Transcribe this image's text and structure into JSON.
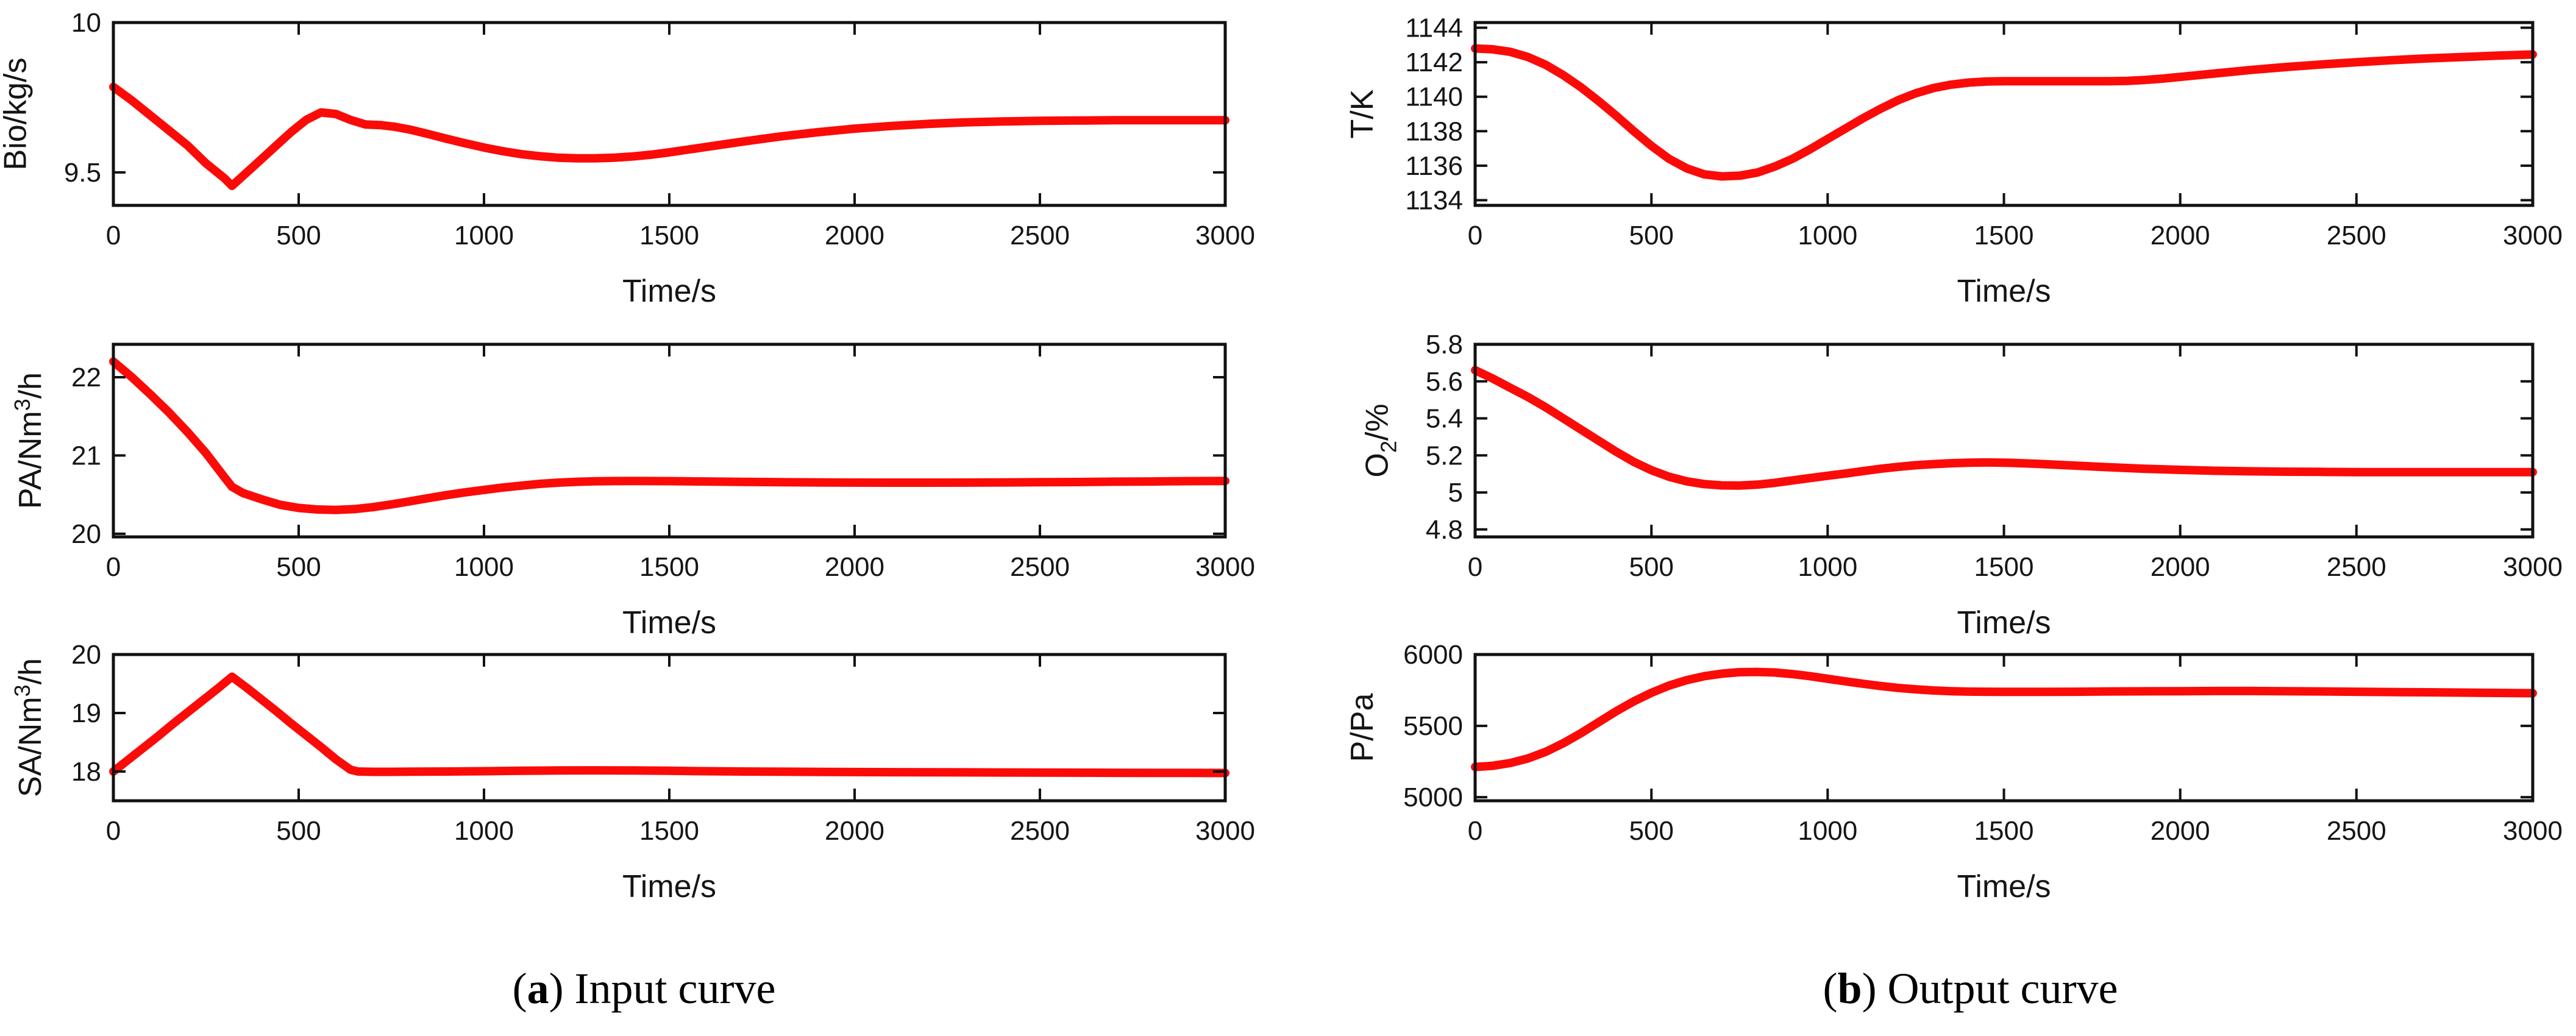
{
  "captions": {
    "a": {
      "prefix": "(",
      "letter": "a",
      "suffix": ") Input curve"
    },
    "b": {
      "prefix": "(",
      "letter": "b",
      "suffix": ") Output curve"
    }
  },
  "style": {
    "line_color": "#fb0b08",
    "axis_color": "#111111",
    "grid": false,
    "legend": false
  },
  "chart_data": [
    {
      "id": "bio",
      "panel": "a",
      "row": 1,
      "type": "line",
      "title": "",
      "ylabel": "Bio/kg/s",
      "ylabel_parts": [
        {
          "text": "Bio/kg/s"
        }
      ],
      "xlabel": "Time/s",
      "xlim": [
        0,
        3000
      ],
      "ylim": [
        9.39,
        10
      ],
      "xticks": [
        0,
        500,
        1000,
        1500,
        2000,
        2500,
        3000
      ],
      "xtick_labels": [
        "0",
        "500",
        "1000",
        "1500",
        "2000",
        "2500",
        "3000"
      ],
      "yticks": [
        9.5,
        10
      ],
      "ytick_labels": [
        "9.5",
        "10"
      ],
      "x": [
        0,
        50,
        100,
        150,
        200,
        250,
        300,
        320,
        360,
        400,
        440,
        480,
        520,
        560,
        600,
        640,
        680,
        720,
        760,
        800,
        850,
        900,
        950,
        1000,
        1050,
        1100,
        1150,
        1200,
        1250,
        1300,
        1350,
        1400,
        1450,
        1500,
        1550,
        1600,
        1700,
        1800,
        1900,
        2000,
        2100,
        2200,
        2300,
        2400,
        2500,
        2600,
        2700,
        2800,
        2900,
        3000
      ],
      "y": [
        9.785,
        9.74,
        9.69,
        9.64,
        9.59,
        9.53,
        9.48,
        9.455,
        9.5,
        9.545,
        9.59,
        9.635,
        9.675,
        9.7,
        9.695,
        9.675,
        9.66,
        9.658,
        9.652,
        9.643,
        9.628,
        9.612,
        9.597,
        9.583,
        9.571,
        9.561,
        9.554,
        9.549,
        9.547,
        9.547,
        9.549,
        9.553,
        9.559,
        9.567,
        9.576,
        9.585,
        9.603,
        9.62,
        9.634,
        9.646,
        9.655,
        9.662,
        9.667,
        9.67,
        9.672,
        9.673,
        9.674,
        9.674,
        9.674,
        9.674
      ]
    },
    {
      "id": "pa",
      "panel": "a",
      "row": 2,
      "type": "line",
      "title": "",
      "ylabel": "PA/Nm3/h",
      "ylabel_parts": [
        {
          "text": "PA/Nm"
        },
        {
          "text": "3",
          "style": "sup"
        },
        {
          "text": "/h"
        }
      ],
      "xlabel": "Time/s",
      "xlim": [
        0,
        3000
      ],
      "ylim": [
        19.96,
        22.42
      ],
      "xticks": [
        0,
        500,
        1000,
        1500,
        2000,
        2500,
        3000
      ],
      "xtick_labels": [
        "0",
        "500",
        "1000",
        "1500",
        "2000",
        "2500",
        "3000"
      ],
      "yticks": [
        20,
        21,
        22
      ],
      "ytick_labels": [
        "20",
        "21",
        "22"
      ],
      "x": [
        0,
        50,
        100,
        150,
        200,
        250,
        300,
        320,
        350,
        400,
        450,
        500,
        550,
        600,
        650,
        700,
        750,
        800,
        850,
        900,
        950,
        1000,
        1050,
        1100,
        1150,
        1200,
        1250,
        1300,
        1350,
        1400,
        1500,
        1600,
        1700,
        1800,
        1900,
        2000,
        2100,
        2200,
        2300,
        2400,
        2500,
        2600,
        2700,
        2800,
        2900,
        3000
      ],
      "y": [
        22.2,
        22.0,
        21.78,
        21.55,
        21.3,
        21.03,
        20.72,
        20.6,
        20.52,
        20.44,
        20.37,
        20.33,
        20.31,
        20.305,
        20.315,
        20.34,
        20.375,
        20.415,
        20.455,
        20.495,
        20.53,
        20.56,
        20.59,
        20.615,
        20.637,
        20.653,
        20.664,
        20.67,
        20.673,
        20.674,
        20.672,
        20.668,
        20.663,
        20.659,
        20.656,
        20.654,
        20.653,
        20.653,
        20.654,
        20.656,
        20.658,
        20.661,
        20.665,
        20.668,
        20.672,
        20.675
      ]
    },
    {
      "id": "sa",
      "panel": "a",
      "row": 3,
      "type": "line",
      "title": "",
      "ylabel": "SA/Nm3/h",
      "ylabel_parts": [
        {
          "text": "SA/Nm"
        },
        {
          "text": "3",
          "style": "sup"
        },
        {
          "text": "/h"
        }
      ],
      "xlabel": "Time/s",
      "xlim": [
        0,
        3000
      ],
      "ylim": [
        17.5,
        20
      ],
      "xticks": [
        0,
        500,
        1000,
        1500,
        2000,
        2500,
        3000
      ],
      "xtick_labels": [
        "0",
        "500",
        "1000",
        "1500",
        "2000",
        "2500",
        "3000"
      ],
      "yticks": [
        18,
        19,
        20
      ],
      "ytick_labels": [
        "18",
        "19",
        "20"
      ],
      "x": [
        0,
        40,
        80,
        120,
        160,
        200,
        240,
        280,
        320,
        360,
        400,
        440,
        480,
        520,
        560,
        600,
        640,
        660,
        700,
        750,
        800,
        900,
        1000,
        1100,
        1200,
        1300,
        1400,
        1500,
        1600,
        1700,
        1800,
        1900,
        2000,
        2100,
        2200,
        2300,
        2400,
        2500,
        2600,
        2700,
        2800,
        2900,
        3000
      ],
      "y": [
        18.0,
        18.2,
        18.4,
        18.6,
        18.81,
        19.01,
        19.21,
        19.41,
        19.62,
        19.43,
        19.23,
        19.03,
        18.82,
        18.62,
        18.42,
        18.21,
        18.03,
        18.0,
        17.995,
        17.995,
        17.998,
        18.0,
        18.005,
        18.012,
        18.018,
        18.02,
        18.018,
        18.012,
        18.005,
        18.0,
        17.997,
        17.994,
        17.991,
        17.989,
        17.987,
        17.985,
        17.983,
        17.981,
        17.98,
        17.978,
        17.977,
        17.976,
        17.975
      ]
    },
    {
      "id": "temperature",
      "panel": "b",
      "row": 1,
      "type": "line",
      "title": "",
      "ylabel": "T/K",
      "ylabel_parts": [
        {
          "text": "T/K"
        }
      ],
      "xlabel": "Time/s",
      "xlim": [
        0,
        3000
      ],
      "ylim": [
        1133.7,
        1144.3
      ],
      "xticks": [
        0,
        500,
        1000,
        1500,
        2000,
        2500,
        3000
      ],
      "xtick_labels": [
        "0",
        "500",
        "1000",
        "1500",
        "2000",
        "2500",
        "3000"
      ],
      "yticks": [
        1134,
        1136,
        1138,
        1140,
        1142,
        1144
      ],
      "ytick_labels": [
        "1134",
        "1136",
        "1138",
        "1140",
        "1142",
        "1144"
      ],
      "x": [
        0,
        50,
        100,
        150,
        200,
        250,
        300,
        350,
        400,
        450,
        500,
        550,
        600,
        650,
        700,
        750,
        800,
        850,
        900,
        950,
        1000,
        1050,
        1100,
        1150,
        1200,
        1250,
        1300,
        1350,
        1400,
        1450,
        1500,
        1600,
        1700,
        1800,
        1850,
        1900,
        1950,
        2000,
        2100,
        2200,
        2300,
        2400,
        2500,
        2600,
        2700,
        2800,
        2900,
        3000
      ],
      "y": [
        1142.8,
        1142.75,
        1142.6,
        1142.3,
        1141.85,
        1141.25,
        1140.55,
        1139.75,
        1138.9,
        1138.0,
        1137.15,
        1136.4,
        1135.85,
        1135.5,
        1135.38,
        1135.42,
        1135.6,
        1135.95,
        1136.4,
        1136.95,
        1137.55,
        1138.15,
        1138.75,
        1139.3,
        1139.8,
        1140.2,
        1140.5,
        1140.7,
        1140.82,
        1140.88,
        1140.9,
        1140.9,
        1140.9,
        1140.9,
        1140.92,
        1140.97,
        1141.05,
        1141.15,
        1141.35,
        1141.55,
        1141.72,
        1141.87,
        1142.0,
        1142.12,
        1142.22,
        1142.3,
        1142.38,
        1142.45
      ]
    },
    {
      "id": "o2",
      "panel": "b",
      "row": 2,
      "type": "line",
      "title": "",
      "ylabel": "O2/%",
      "ylabel_parts": [
        {
          "text": "O"
        },
        {
          "text": "2",
          "style": "sub"
        },
        {
          "text": "/%"
        }
      ],
      "xlabel": "Time/s",
      "xlim": [
        0,
        3000
      ],
      "ylim": [
        4.76,
        5.8
      ],
      "xticks": [
        0,
        500,
        1000,
        1500,
        2000,
        2500,
        3000
      ],
      "xtick_labels": [
        "0",
        "500",
        "1000",
        "1500",
        "2000",
        "2500",
        "3000"
      ],
      "yticks": [
        4.8,
        5,
        5.2,
        5.4,
        5.6,
        5.8
      ],
      "ytick_labels": [
        "4.8",
        "5",
        "5.2",
        "5.4",
        "5.6",
        "5.8"
      ],
      "x": [
        0,
        50,
        100,
        150,
        200,
        250,
        300,
        350,
        400,
        450,
        500,
        550,
        600,
        650,
        700,
        750,
        800,
        850,
        900,
        950,
        1000,
        1050,
        1100,
        1150,
        1200,
        1250,
        1300,
        1350,
        1400,
        1450,
        1500,
        1550,
        1600,
        1700,
        1800,
        1900,
        2000,
        2100,
        2200,
        2300,
        2400,
        2500,
        2600,
        2700,
        2800,
        2900,
        3000
      ],
      "y": [
        5.66,
        5.615,
        5.565,
        5.515,
        5.46,
        5.4,
        5.34,
        5.28,
        5.22,
        5.165,
        5.12,
        5.085,
        5.06,
        5.045,
        5.038,
        5.037,
        5.042,
        5.052,
        5.065,
        5.078,
        5.09,
        5.102,
        5.115,
        5.128,
        5.138,
        5.147,
        5.153,
        5.158,
        5.161,
        5.162,
        5.161,
        5.158,
        5.154,
        5.145,
        5.136,
        5.128,
        5.122,
        5.117,
        5.114,
        5.112,
        5.111,
        5.11,
        5.11,
        5.11,
        5.11,
        5.11,
        5.11
      ]
    },
    {
      "id": "pressure",
      "panel": "b",
      "row": 3,
      "type": "line",
      "title": "",
      "ylabel": "P/Pa",
      "ylabel_parts": [
        {
          "text": "P/Pa"
        }
      ],
      "xlabel": "Time/s",
      "xlim": [
        0,
        3000
      ],
      "ylim": [
        4975,
        6000
      ],
      "xticks": [
        0,
        500,
        1000,
        1500,
        2000,
        2500,
        3000
      ],
      "xtick_labels": [
        "0",
        "500",
        "1000",
        "1500",
        "2000",
        "2500",
        "3000"
      ],
      "yticks": [
        5000,
        5500,
        6000
      ],
      "ytick_labels": [
        "5000",
        "5500",
        "6000"
      ],
      "x": [
        0,
        50,
        100,
        150,
        200,
        250,
        300,
        350,
        400,
        450,
        500,
        550,
        600,
        650,
        700,
        750,
        800,
        850,
        900,
        950,
        1000,
        1050,
        1100,
        1150,
        1200,
        1250,
        1300,
        1350,
        1400,
        1450,
        1500,
        1600,
        1700,
        1800,
        1900,
        2000,
        2100,
        2200,
        2300,
        2400,
        2500,
        2600,
        2700,
        2800,
        2900,
        3000
      ],
      "y": [
        5212,
        5220,
        5240,
        5272,
        5318,
        5378,
        5448,
        5525,
        5602,
        5672,
        5732,
        5782,
        5820,
        5848,
        5866,
        5876,
        5878,
        5874,
        5863,
        5848,
        5830,
        5812,
        5795,
        5779,
        5766,
        5756,
        5748,
        5743,
        5740,
        5739,
        5738,
        5738,
        5739,
        5741,
        5742,
        5743,
        5744,
        5744,
        5743,
        5741,
        5739,
        5737,
        5735,
        5733,
        5731,
        5729
      ]
    }
  ]
}
